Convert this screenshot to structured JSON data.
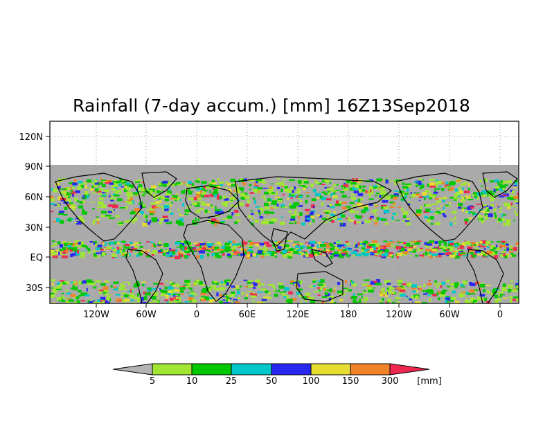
{
  "title": "Rainfall (7-day accum.) [mm] 16Z13Sep2018",
  "y_ticks": [
    "120N",
    "90N",
    "60N",
    "30N",
    "EQ",
    "30S"
  ],
  "x_ticks": [
    "120W",
    "60W",
    "0",
    "60E",
    "120E",
    "180",
    "120W",
    "60W",
    "0"
  ],
  "colorbar": {
    "unit": "[mm]",
    "bins": [
      {
        "color": "#b4b4b4",
        "label": ""
      },
      {
        "color": "#a0e632",
        "label": "5"
      },
      {
        "color": "#00c800",
        "label": "10"
      },
      {
        "color": "#00c8c8",
        "label": "25"
      },
      {
        "color": "#2828f0",
        "label": "50"
      },
      {
        "color": "#e6dc32",
        "label": "100"
      },
      {
        "color": "#f08228",
        "label": "150"
      },
      {
        "color": "#f02850",
        "label": "300"
      }
    ]
  },
  "colors": {
    "ocean_no_rain": "#aaaaaa",
    "above_90n": "#ffffff",
    "coastline": "#000000",
    "grid": "#999999"
  }
}
